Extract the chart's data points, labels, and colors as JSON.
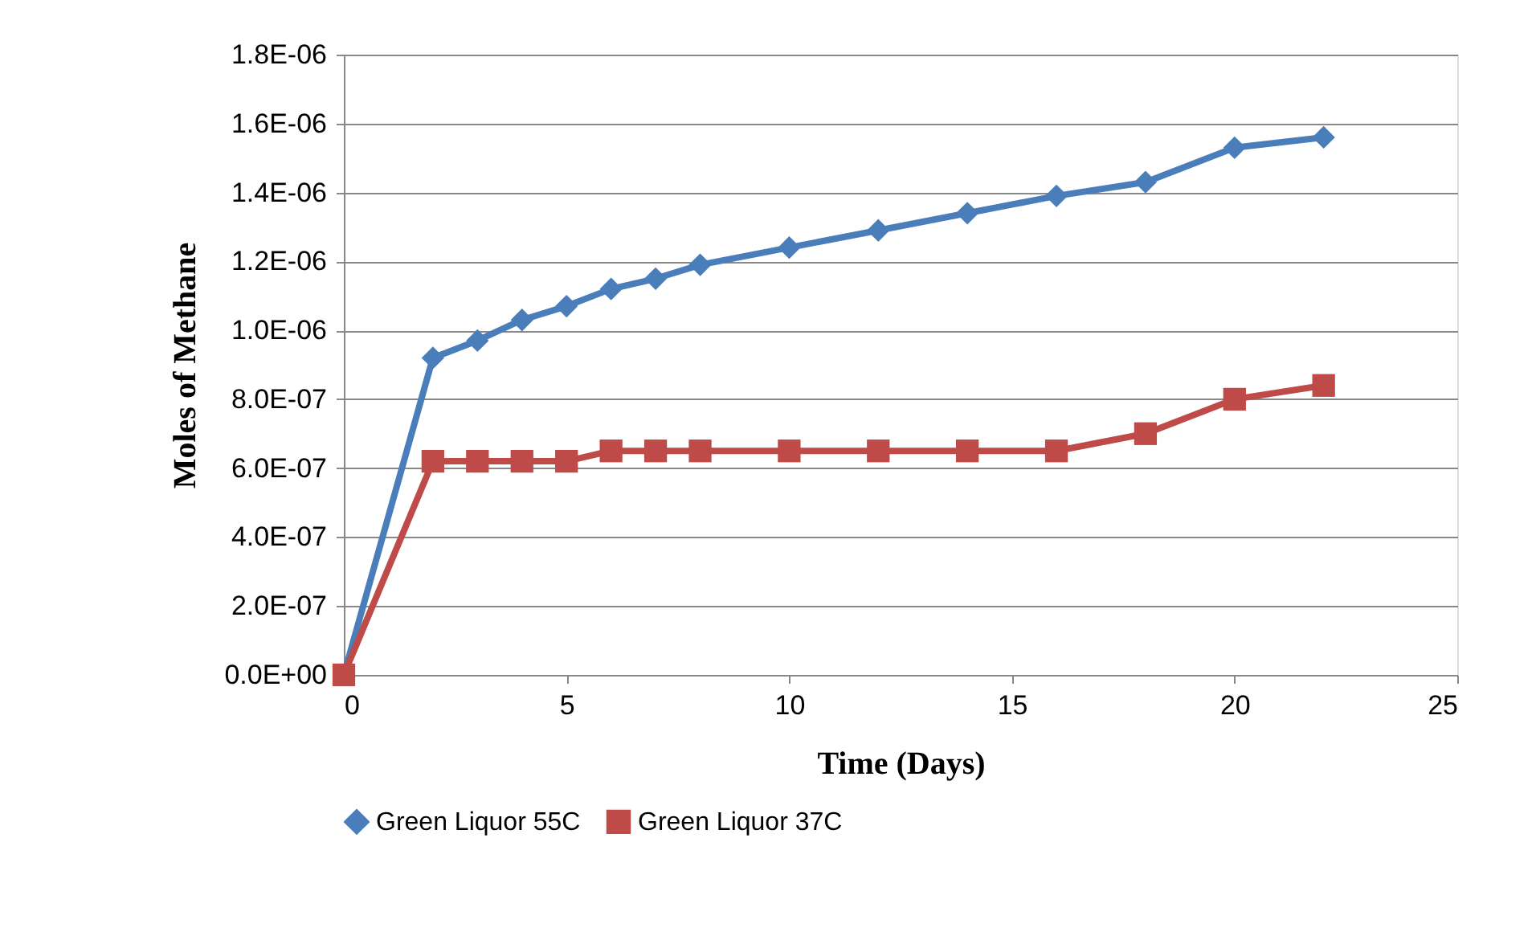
{
  "chart_data": {
    "type": "line",
    "xlabel": "Time (Days)",
    "ylabel": "Moles of Methane",
    "xlim": [
      0,
      25
    ],
    "xticks": [
      0,
      5,
      10,
      15,
      20,
      25
    ],
    "ylim": [
      0,
      1.8e-06
    ],
    "yticks": [
      {
        "value": 0,
        "label": "0.0E+00"
      },
      {
        "value": 2e-07,
        "label": "2.0E-07"
      },
      {
        "value": 4e-07,
        "label": "4.0E-07"
      },
      {
        "value": 6e-07,
        "label": "6.0E-07"
      },
      {
        "value": 8e-07,
        "label": "8.0E-07"
      },
      {
        "value": 1e-06,
        "label": "1.0E-06"
      },
      {
        "value": 1.2e-06,
        "label": "1.2E-06"
      },
      {
        "value": 1.4e-06,
        "label": "1.4E-06"
      },
      {
        "value": 1.6e-06,
        "label": "1.6E-06"
      },
      {
        "value": 1.8e-06,
        "label": "1.8E-06"
      }
    ],
    "grid": "y",
    "legend": "bottom",
    "line_style": "solid",
    "series": [
      {
        "name": "Green Liquor 55C",
        "color": "#4a7ebb",
        "marker": "diamond",
        "x": [
          0,
          2,
          3,
          4,
          5,
          6,
          7,
          8,
          10,
          12,
          14,
          16,
          18,
          20,
          22
        ],
        "values": [
          0,
          9.2e-07,
          9.7e-07,
          1.03e-06,
          1.07e-06,
          1.12e-06,
          1.15e-06,
          1.19e-06,
          1.24e-06,
          1.29e-06,
          1.34e-06,
          1.39e-06,
          1.43e-06,
          1.53e-06,
          1.56e-06
        ]
      },
      {
        "name": "Green Liquor 37C",
        "color": "#be4b48",
        "marker": "square",
        "x": [
          0,
          2,
          3,
          4,
          5,
          6,
          7,
          8,
          10,
          12,
          14,
          16,
          18,
          20,
          22
        ],
        "values": [
          0,
          6.2e-07,
          6.2e-07,
          6.2e-07,
          6.2e-07,
          6.5e-07,
          6.5e-07,
          6.5e-07,
          6.5e-07,
          6.5e-07,
          6.5e-07,
          6.5e-07,
          7e-07,
          8e-07,
          8.4e-07
        ]
      }
    ]
  }
}
